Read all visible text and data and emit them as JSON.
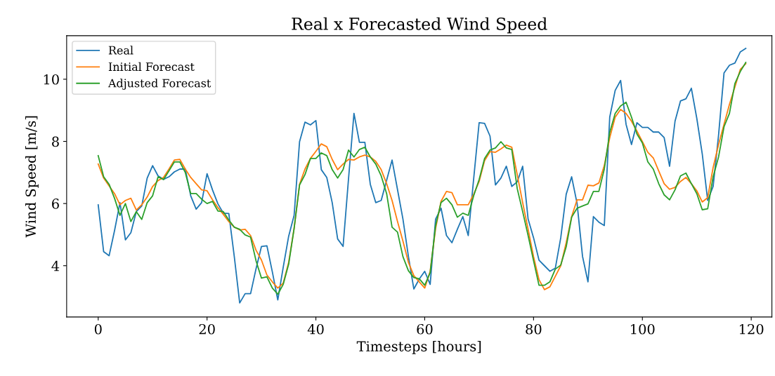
{
  "chart_data": {
    "type": "line",
    "title": "Real x Forecasted Wind Speed",
    "xlabel": "Timesteps [hours]",
    "ylabel": "Wind Speed [m/s]",
    "x": [
      0,
      1,
      2,
      3,
      4,
      5,
      6,
      7,
      8,
      9,
      10,
      11,
      12,
      13,
      14,
      15,
      16,
      17,
      18,
      19,
      20,
      21,
      22,
      23,
      24,
      25,
      26,
      27,
      28,
      29,
      30,
      31,
      32,
      33,
      34,
      35,
      36,
      37,
      38,
      39,
      40,
      41,
      42,
      43,
      44,
      45,
      46,
      47,
      48,
      49,
      50,
      51,
      52,
      53,
      54,
      55,
      56,
      57,
      58,
      59,
      60,
      61,
      62,
      63,
      64,
      65,
      66,
      67,
      68,
      69,
      70,
      71,
      72,
      73,
      74,
      75,
      76,
      77,
      78,
      79,
      80,
      81,
      82,
      83,
      84,
      85,
      86,
      87,
      88,
      89,
      90,
      91,
      92,
      93,
      94,
      95,
      96,
      97,
      98,
      99,
      100,
      101,
      102,
      103,
      104,
      105,
      106,
      107,
      108,
      109,
      110,
      111,
      112,
      113,
      114,
      115,
      116,
      117,
      118,
      119
    ],
    "series": [
      {
        "name": "Real",
        "color": "#1f77b4",
        "values": [
          5.96,
          4.45,
          4.32,
          5.13,
          6.03,
          4.83,
          5.06,
          5.74,
          5.92,
          6.82,
          7.22,
          6.89,
          6.78,
          6.86,
          7.02,
          7.11,
          7.11,
          6.25,
          5.82,
          6.03,
          6.96,
          6.44,
          5.99,
          5.69,
          5.68,
          4.3,
          2.8,
          3.1,
          3.1,
          3.9,
          4.62,
          4.64,
          3.8,
          2.9,
          3.95,
          4.95,
          5.62,
          7.99,
          8.62,
          8.53,
          8.67,
          7.09,
          6.84,
          6.03,
          4.86,
          4.62,
          6.8,
          8.9,
          7.97,
          7.97,
          6.62,
          6.03,
          6.1,
          6.75,
          7.4,
          6.45,
          5.5,
          4.3,
          3.25,
          3.57,
          3.82,
          3.4,
          5.5,
          5.85,
          4.97,
          4.74,
          5.17,
          5.58,
          4.97,
          6.8,
          8.6,
          8.58,
          8.17,
          6.6,
          6.82,
          7.2,
          6.55,
          6.7,
          7.2,
          5.5,
          4.9,
          4.18,
          4.0,
          3.82,
          3.92,
          4.9,
          6.3,
          6.86,
          6.0,
          4.3,
          3.48,
          5.58,
          5.4,
          5.29,
          8.78,
          9.64,
          9.96,
          8.55,
          7.9,
          8.6,
          8.45,
          8.45,
          8.3,
          8.3,
          8.12,
          7.2,
          8.65,
          9.3,
          9.37,
          9.71,
          8.74,
          7.6,
          6.1,
          6.55,
          8.2,
          10.2,
          10.45,
          10.52,
          10.88,
          10.99
        ]
      },
      {
        "name": "Initial Forecast",
        "color": "#ff7f0e",
        "values": [
          7.27,
          6.82,
          6.57,
          6.32,
          5.96,
          6.1,
          6.17,
          5.79,
          5.96,
          6.21,
          6.55,
          6.74,
          6.84,
          7.11,
          7.4,
          7.42,
          7.11,
          6.84,
          6.64,
          6.44,
          6.41,
          6.12,
          5.87,
          5.65,
          5.42,
          5.24,
          5.15,
          5.17,
          4.97,
          4.5,
          4.18,
          3.7,
          3.48,
          3.28,
          3.44,
          4.11,
          5.2,
          6.62,
          7.11,
          7.45,
          7.68,
          7.92,
          7.83,
          7.42,
          7.09,
          7.27,
          7.42,
          7.4,
          7.5,
          7.56,
          7.5,
          7.36,
          7.09,
          6.64,
          6.1,
          5.42,
          4.79,
          4.11,
          3.68,
          3.48,
          3.28,
          3.82,
          5.2,
          6.07,
          6.39,
          6.35,
          5.96,
          5.96,
          5.96,
          6.3,
          6.71,
          7.38,
          7.67,
          7.65,
          7.76,
          7.88,
          7.81,
          6.93,
          6.03,
          5.17,
          4.29,
          3.55,
          3.23,
          3.32,
          3.66,
          4.0,
          4.74,
          5.58,
          6.12,
          6.12,
          6.59,
          6.57,
          6.66,
          7.22,
          8.12,
          8.78,
          9.03,
          8.9,
          8.65,
          8.33,
          7.99,
          7.65,
          7.47,
          7.05,
          6.64,
          6.46,
          6.52,
          6.71,
          6.84,
          6.64,
          6.41,
          6.05,
          6.19,
          7.16,
          7.9,
          8.55,
          9.19,
          9.75,
          10.32,
          10.5
        ]
      },
      {
        "name": "Adjusted Forecast",
        "color": "#2ca02c",
        "values": [
          7.54,
          6.86,
          6.62,
          6.17,
          5.62,
          6.0,
          5.42,
          5.74,
          5.49,
          6.03,
          6.25,
          6.86,
          6.77,
          7.05,
          7.34,
          7.34,
          7.0,
          6.32,
          6.32,
          6.14,
          6.0,
          6.07,
          5.76,
          5.74,
          5.47,
          5.24,
          5.17,
          4.99,
          4.92,
          4.16,
          3.6,
          3.64,
          3.28,
          3.08,
          3.4,
          4.05,
          5.2,
          6.6,
          6.93,
          7.45,
          7.45,
          7.63,
          7.54,
          7.09,
          6.82,
          7.09,
          7.72,
          7.5,
          7.74,
          7.81,
          7.5,
          7.27,
          6.89,
          6.32,
          5.24,
          5.08,
          4.29,
          3.84,
          3.62,
          3.58,
          3.37,
          3.77,
          5.29,
          6.03,
          6.17,
          5.96,
          5.56,
          5.69,
          5.62,
          6.25,
          6.77,
          7.45,
          7.72,
          7.79,
          7.99,
          7.79,
          7.74,
          6.48,
          5.74,
          4.97,
          4.16,
          3.37,
          3.37,
          3.48,
          3.89,
          4.02,
          4.61,
          5.56,
          5.85,
          5.92,
          5.99,
          6.39,
          6.39,
          7.11,
          8.29,
          8.9,
          9.14,
          9.26,
          8.78,
          8.24,
          7.95,
          7.34,
          7.11,
          6.64,
          6.28,
          6.12,
          6.44,
          6.89,
          6.98,
          6.64,
          6.32,
          5.8,
          5.83,
          6.86,
          7.5,
          8.47,
          8.9,
          9.86,
          10.25,
          10.54
        ]
      }
    ],
    "xlim": [
      -5.8,
      123.8
    ],
    "xticks": [
      0,
      20,
      40,
      60,
      80,
      100,
      120
    ],
    "ylim": [
      2.35,
      11.4
    ],
    "yticks": [
      4,
      6,
      8,
      10
    ],
    "legend": "top left",
    "grid": false,
    "marker": "none",
    "line_style": "solid"
  }
}
